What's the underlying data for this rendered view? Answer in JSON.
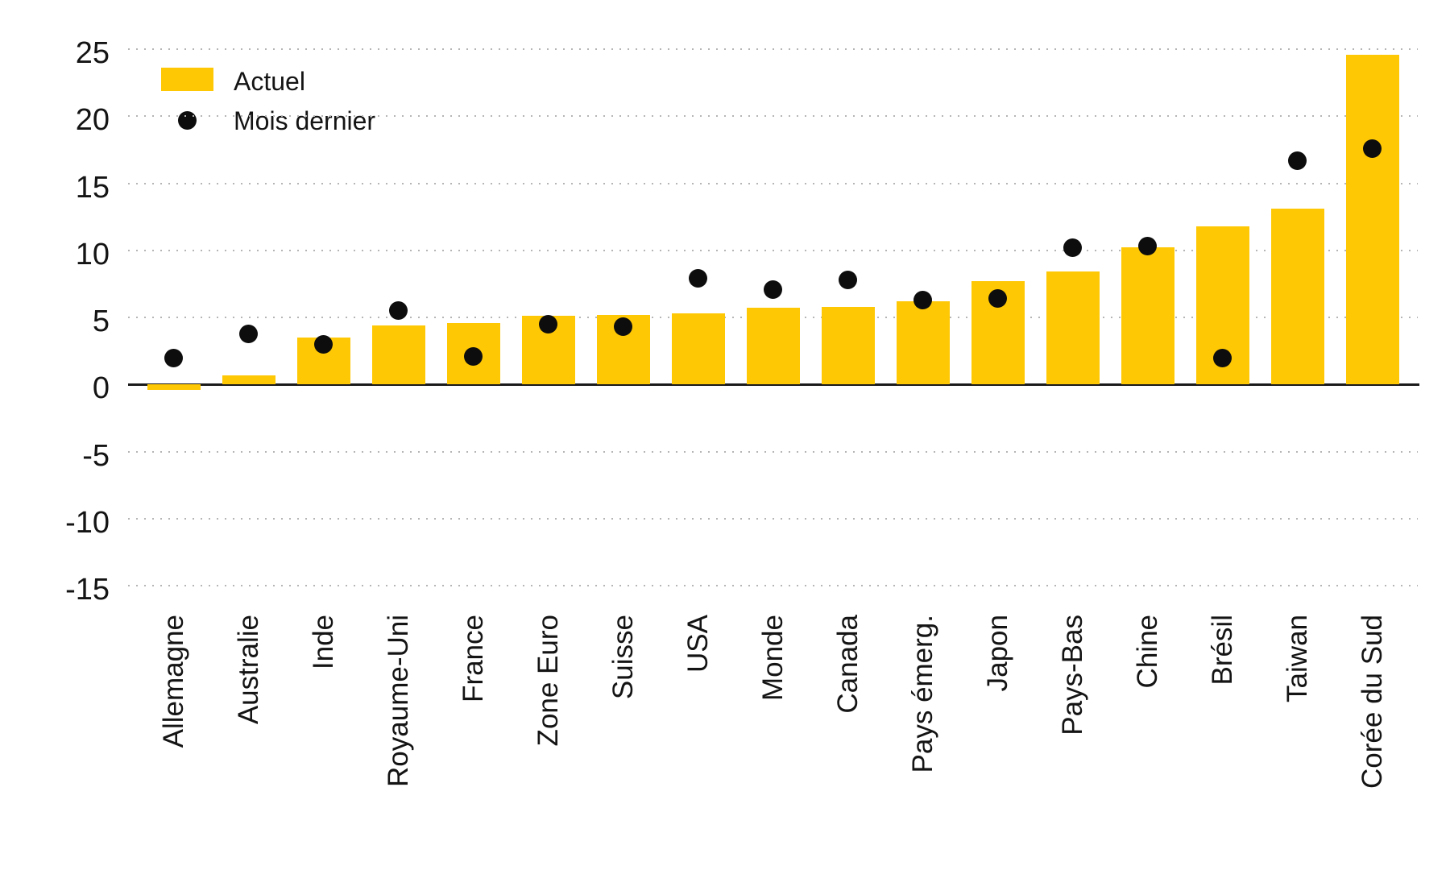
{
  "legend": {
    "items": [
      {
        "label": "Actuel",
        "marker": "bar-swatch"
      },
      {
        "label": "Mois dernier",
        "marker": "dot"
      }
    ]
  },
  "colors": {
    "background": "#ffffff",
    "bar": "#FFC805",
    "dot": "#0d0d0d",
    "axis": "#1a1a1a",
    "grid": "#b5b5b5",
    "text": "#141414"
  },
  "chart_data": {
    "type": "bar",
    "title": "",
    "xlabel": "",
    "ylabel": "",
    "categories": [
      "Allemagne",
      "Australie",
      "Inde",
      "Royaume-Uni",
      "France",
      "Zone Euro",
      "Suisse",
      "USA",
      "Monde",
      "Canada",
      "Pays émerg.",
      "Japon",
      "Pays-Bas",
      "Chine",
      "Brésil",
      "Taiwan",
      "Corée du Sud"
    ],
    "series": [
      {
        "name": "Actuel",
        "type": "bar",
        "values": [
          -0.4,
          0.7,
          3.5,
          4.4,
          4.6,
          5.1,
          5.2,
          5.3,
          5.7,
          5.8,
          6.2,
          7.7,
          8.4,
          10.2,
          11.8,
          13.1,
          24.6
        ]
      },
      {
        "name": "Mois dernier",
        "type": "scatter",
        "values": [
          2.0,
          3.8,
          3.0,
          5.5,
          2.1,
          4.5,
          4.3,
          7.9,
          7.1,
          7.8,
          6.3,
          6.4,
          10.2,
          10.3,
          2.0,
          16.7,
          17.6
        ]
      }
    ],
    "yticks": [
      25,
      20,
      15,
      10,
      5,
      0,
      -5,
      -10,
      -15
    ],
    "ylim": [
      -15,
      25
    ],
    "grid": "dotted-horizontal",
    "legend_position": "top-left",
    "x_tick_label_rotation": -90
  }
}
